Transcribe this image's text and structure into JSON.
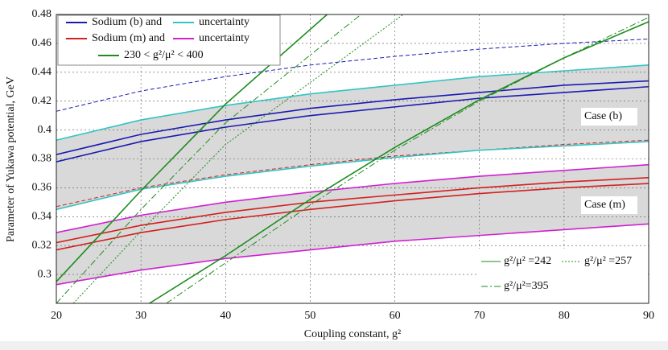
{
  "chart_data": {
    "type": "line",
    "xlabel": "Coupling constant, g²",
    "ylabel": "Parameter of Yukawa potential, GeV",
    "x": [
      20,
      30,
      40,
      50,
      60,
      70,
      80,
      90
    ],
    "xlim": [
      20,
      90
    ],
    "xticks": [
      20,
      30,
      40,
      50,
      60,
      70,
      80,
      90
    ],
    "ylim": [
      0.28,
      0.48
    ],
    "yticks": [
      0.3,
      0.32,
      0.34,
      0.36,
      0.38,
      0.4,
      0.42,
      0.44,
      0.46,
      0.48
    ],
    "grid": true,
    "series": [
      {
        "color": "#1a1ab4",
        "style": "dashed",
        "values": [
          0.413,
          0.427,
          0.437,
          0.445,
          0.451,
          0.456,
          0.46,
          0.463
        ]
      },
      {
        "color": "#33c4c4",
        "style": "solid",
        "values": [
          0.393,
          0.407,
          0.417,
          0.425,
          0.431,
          0.437,
          0.441,
          0.445
        ]
      },
      {
        "color": "#1a1ab4",
        "style": "solid",
        "values": [
          0.383,
          0.397,
          0.407,
          0.415,
          0.421,
          0.426,
          0.431,
          0.434
        ]
      },
      {
        "color": "#1a1ab4",
        "style": "solid",
        "values": [
          0.378,
          0.392,
          0.402,
          0.41,
          0.416,
          0.422,
          0.426,
          0.43
        ]
      },
      {
        "color": "#d42020",
        "style": "dashed",
        "values": [
          0.347,
          0.36,
          0.369,
          0.376,
          0.382,
          0.386,
          0.39,
          0.393
        ]
      },
      {
        "color": "#33c4c4",
        "style": "solid",
        "values": [
          0.345,
          0.359,
          0.368,
          0.375,
          0.381,
          0.386,
          0.389,
          0.392
        ]
      },
      {
        "color": "#d020d0",
        "style": "solid",
        "values": [
          0.329,
          0.341,
          0.35,
          0.357,
          0.363,
          0.368,
          0.372,
          0.376
        ]
      },
      {
        "color": "#d42020",
        "style": "solid",
        "values": [
          0.322,
          0.334,
          0.343,
          0.35,
          0.355,
          0.36,
          0.364,
          0.367
        ]
      },
      {
        "color": "#d42020",
        "style": "solid",
        "values": [
          0.317,
          0.329,
          0.338,
          0.345,
          0.351,
          0.356,
          0.36,
          0.363
        ]
      },
      {
        "color": "#d020d0",
        "style": "solid",
        "values": [
          0.293,
          0.303,
          0.311,
          0.317,
          0.323,
          0.327,
          0.331,
          0.335
        ]
      },
      {
        "color": "#1e8c1e",
        "style": "solid",
        "x": [
          20,
          30,
          40,
          52
        ],
        "values": [
          0.295,
          0.358,
          0.418,
          0.48
        ]
      },
      {
        "color": "#1e8c1e",
        "style": "solid",
        "x": [
          31,
          40,
          50,
          60,
          70,
          80,
          90
        ],
        "values": [
          0.28,
          0.313,
          0.352,
          0.388,
          0.421,
          0.45,
          0.475
        ]
      },
      {
        "color": "#1e8c1e",
        "style": "dashdot",
        "x": [
          20,
          30,
          40,
          56
        ],
        "values": [
          0.28,
          0.345,
          0.405,
          0.48
        ]
      },
      {
        "color": "#1e8c1e",
        "style": "dotted",
        "x": [
          22,
          30,
          40,
          61
        ],
        "values": [
          0.28,
          0.33,
          0.39,
          0.48
        ]
      },
      {
        "color": "#1e8c1e",
        "style": "dashdot",
        "x": [
          33,
          40,
          50,
          60,
          70,
          80,
          90
        ],
        "values": [
          0.28,
          0.308,
          0.348,
          0.386,
          0.42,
          0.45,
          0.478
        ]
      }
    ],
    "legend": [
      {
        "name": "Sodium (b) and",
        "color": "#1a1ab4"
      },
      {
        "name": "uncertainty",
        "color": "#33c4c4"
      },
      {
        "name": "Sodium (m) and",
        "color": "#d42020"
      },
      {
        "name": "uncertainty",
        "color": "#d020d0"
      },
      {
        "name": "230 < g²/μ² < 400",
        "color": "#1e8c1e"
      }
    ],
    "legend2": [
      {
        "name": "g²/μ² =242",
        "color": "#1e8c1e",
        "style": "solid"
      },
      {
        "name": "g²/μ² =257",
        "color": "#1e8c1e",
        "style": "dotted"
      },
      {
        "name": "g²/μ²=395",
        "color": "#1e8c1e",
        "style": "dashdot"
      }
    ],
    "annotations": [
      "Case (b)",
      "Case (m)"
    ]
  }
}
